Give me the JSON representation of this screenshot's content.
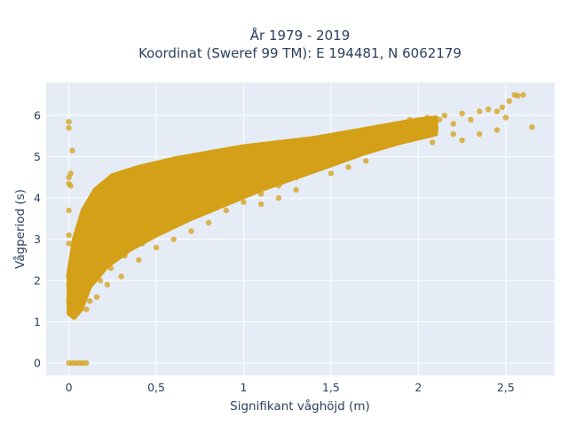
{
  "chart_data": {
    "type": "scatter",
    "title_line1": "År 1979 - 2019",
    "title_line2": "Koordinat (Sweref 99 TM): E 194481, N 6062179",
    "xlabel": "Signifikant våghöjd (m)",
    "ylabel": "Vågperiod (s)",
    "xlim": [
      -0.13,
      2.78
    ],
    "ylim": [
      -0.3,
      6.8
    ],
    "x_ticks": [
      {
        "value": 0,
        "label": "0"
      },
      {
        "value": 0.5,
        "label": "0,5"
      },
      {
        "value": 1,
        "label": "1"
      },
      {
        "value": 1.5,
        "label": "1,5"
      },
      {
        "value": 2,
        "label": "2"
      },
      {
        "value": 2.5,
        "label": "2,5"
      }
    ],
    "y_ticks": [
      {
        "value": 0,
        "label": "0"
      },
      {
        "value": 1,
        "label": "1"
      },
      {
        "value": 2,
        "label": "2"
      },
      {
        "value": 3,
        "label": "3"
      },
      {
        "value": 4,
        "label": "4"
      },
      {
        "value": 5,
        "label": "5"
      },
      {
        "value": 6,
        "label": "6"
      }
    ],
    "grid": true,
    "legend": "none",
    "marker_color": "#d4a017",
    "background_color": "#e5ecf6",
    "points": [
      [
        0.0,
        5.85
      ],
      [
        0.0,
        5.7
      ],
      [
        0.02,
        5.15
      ],
      [
        0.01,
        4.6
      ],
      [
        0.0,
        4.5
      ],
      [
        0.0,
        4.35
      ],
      [
        0.01,
        4.3
      ],
      [
        0.0,
        3.7
      ],
      [
        0.0,
        3.1
      ],
      [
        0.0,
        2.9
      ],
      [
        0.0,
        2.1
      ],
      [
        0.0,
        1.9
      ],
      [
        0.0,
        1.5
      ],
      [
        0.0,
        0.0
      ],
      [
        0.02,
        0.0
      ],
      [
        0.04,
        0.0
      ],
      [
        0.06,
        0.0
      ],
      [
        0.08,
        0.0
      ],
      [
        0.1,
        0.0
      ],
      [
        0.05,
        1.3
      ],
      [
        0.05,
        1.6
      ],
      [
        0.06,
        1.9
      ],
      [
        0.07,
        2.2
      ],
      [
        0.08,
        2.6
      ],
      [
        0.08,
        3.0
      ],
      [
        0.09,
        3.4
      ],
      [
        0.1,
        3.6
      ],
      [
        0.1,
        2.0
      ],
      [
        0.1,
        1.3
      ],
      [
        0.12,
        1.5
      ],
      [
        0.12,
        2.3
      ],
      [
        0.13,
        2.8
      ],
      [
        0.14,
        3.2
      ],
      [
        0.15,
        3.7
      ],
      [
        0.15,
        4.0
      ],
      [
        0.16,
        1.6
      ],
      [
        0.18,
        2.0
      ],
      [
        0.18,
        2.6
      ],
      [
        0.2,
        3.0
      ],
      [
        0.2,
        3.5
      ],
      [
        0.2,
        4.0
      ],
      [
        0.21,
        4.2
      ],
      [
        0.22,
        1.9
      ],
      [
        0.24,
        2.3
      ],
      [
        0.25,
        2.8
      ],
      [
        0.26,
        3.3
      ],
      [
        0.28,
        3.8
      ],
      [
        0.3,
        4.4
      ],
      [
        0.3,
        2.1
      ],
      [
        0.32,
        2.6
      ],
      [
        0.34,
        3.0
      ],
      [
        0.35,
        3.5
      ],
      [
        0.36,
        4.0
      ],
      [
        0.38,
        4.3
      ],
      [
        0.4,
        2.5
      ],
      [
        0.42,
        2.9
      ],
      [
        0.44,
        3.3
      ],
      [
        0.45,
        3.7
      ],
      [
        0.46,
        4.1
      ],
      [
        0.48,
        4.5
      ],
      [
        0.5,
        2.8
      ],
      [
        0.52,
        3.2
      ],
      [
        0.54,
        3.6
      ],
      [
        0.55,
        4.0
      ],
      [
        0.56,
        4.4
      ],
      [
        0.6,
        3.0
      ],
      [
        0.62,
        3.4
      ],
      [
        0.64,
        3.8
      ],
      [
        0.65,
        4.2
      ],
      [
        0.66,
        4.6
      ],
      [
        0.7,
        3.2
      ],
      [
        0.72,
        3.6
      ],
      [
        0.74,
        4.0
      ],
      [
        0.75,
        4.4
      ],
      [
        0.76,
        4.8
      ],
      [
        0.8,
        3.4
      ],
      [
        0.82,
        3.8
      ],
      [
        0.84,
        4.2
      ],
      [
        0.85,
        4.5
      ],
      [
        0.9,
        3.7
      ],
      [
        0.92,
        4.0
      ],
      [
        0.94,
        4.3
      ],
      [
        0.95,
        4.6
      ],
      [
        0.96,
        4.9
      ],
      [
        1.0,
        3.9
      ],
      [
        1.02,
        4.2
      ],
      [
        1.04,
        4.5
      ],
      [
        1.05,
        4.8
      ],
      [
        1.1,
        4.1
      ],
      [
        1.12,
        4.4
      ],
      [
        1.14,
        4.7
      ],
      [
        1.15,
        5.0
      ],
      [
        1.2,
        4.3
      ],
      [
        1.22,
        4.6
      ],
      [
        1.24,
        4.9
      ],
      [
        1.25,
        5.2
      ],
      [
        1.3,
        4.5
      ],
      [
        1.32,
        4.8
      ],
      [
        1.34,
        5.1
      ],
      [
        1.4,
        4.7
      ],
      [
        1.42,
        5.0
      ],
      [
        1.44,
        5.3
      ],
      [
        1.5,
        4.9
      ],
      [
        1.52,
        5.2
      ],
      [
        1.54,
        5.4
      ],
      [
        1.6,
        5.0
      ],
      [
        1.62,
        5.3
      ],
      [
        1.65,
        5.5
      ],
      [
        1.7,
        5.2
      ],
      [
        1.72,
        5.4
      ],
      [
        1.75,
        5.6
      ],
      [
        1.8,
        5.3
      ],
      [
        1.82,
        5.5
      ],
      [
        1.85,
        5.7
      ],
      [
        1.9,
        5.5
      ],
      [
        1.92,
        5.7
      ],
      [
        1.95,
        5.9
      ],
      [
        2.0,
        5.6
      ],
      [
        2.02,
        5.8
      ],
      [
        2.05,
        5.95
      ],
      [
        2.1,
        5.7
      ],
      [
        2.12,
        5.9
      ],
      [
        2.15,
        6.0
      ],
      [
        2.2,
        5.8
      ],
      [
        2.25,
        6.05
      ],
      [
        2.3,
        5.9
      ],
      [
        2.35,
        6.1
      ],
      [
        2.4,
        6.15
      ],
      [
        2.45,
        6.1
      ],
      [
        2.5,
        5.95
      ],
      [
        2.48,
        6.2
      ],
      [
        2.52,
        6.35
      ],
      [
        2.55,
        6.5
      ],
      [
        2.6,
        6.5
      ],
      [
        2.65,
        5.72
      ],
      [
        2.57,
        6.48
      ],
      [
        2.45,
        5.65
      ],
      [
        2.35,
        5.55
      ],
      [
        2.25,
        5.4
      ],
      [
        2.2,
        5.55
      ],
      [
        2.08,
        5.35
      ],
      [
        1.98,
        5.5
      ],
      [
        0.5,
        4.8
      ],
      [
        0.55,
        4.85
      ],
      [
        0.4,
        4.6
      ],
      [
        0.3,
        4.5
      ],
      [
        0.2,
        4.35
      ],
      [
        0.25,
        4.2
      ],
      [
        0.35,
        4.55
      ],
      [
        1.5,
        4.6
      ],
      [
        1.6,
        4.75
      ],
      [
        1.7,
        4.9
      ],
      [
        1.1,
        3.85
      ],
      [
        1.2,
        4.0
      ],
      [
        1.3,
        4.2
      ]
    ]
  }
}
